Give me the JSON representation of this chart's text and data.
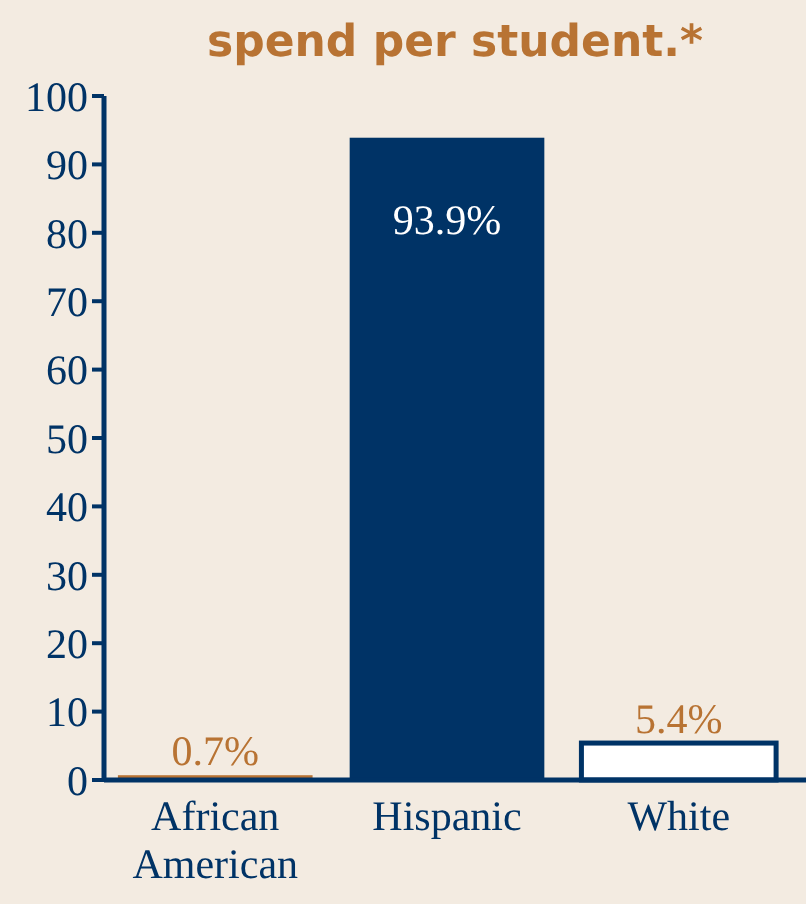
{
  "chart_data": {
    "type": "bar",
    "title": "spend per student.*",
    "categories": [
      "African American",
      "Hispanic",
      "White"
    ],
    "values": [
      0.7,
      93.9,
      5.4
    ],
    "colors": [
      "#b87333",
      "#003366",
      "#ffffff"
    ],
    "value_labels": [
      "0.7%",
      "93.9%",
      "5.4%"
    ],
    "ylim": [
      0,
      100
    ],
    "yticks": [
      0,
      10,
      20,
      30,
      40,
      50,
      60,
      70,
      80,
      90,
      100
    ],
    "grid": false
  }
}
